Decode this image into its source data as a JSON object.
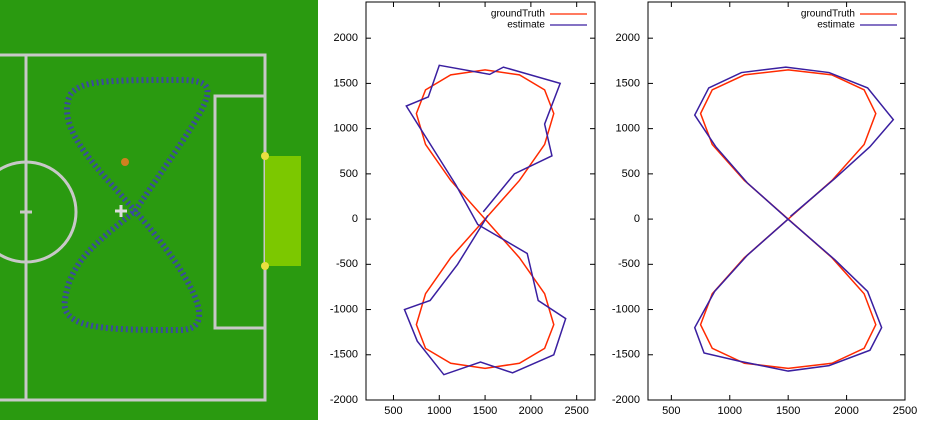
{
  "chart_data": [
    {
      "type": "line",
      "xlim": [
        200,
        2700
      ],
      "ylim": [
        -2000,
        2400
      ],
      "xticks": [
        500,
        1000,
        1500,
        2000,
        2500
      ],
      "yticks": [
        -2000,
        -1500,
        -1000,
        -500,
        0,
        500,
        1000,
        1500,
        2000
      ],
      "legend": "upper right",
      "series": [
        {
          "name": "groundTruth",
          "color": "#ff2a00",
          "x": [
            1500,
            1875,
            2150,
            2250,
            2150,
            1875,
            1500,
            1125,
            850,
            750,
            850,
            1125,
            1500,
            1875,
            2150,
            2250,
            2150,
            1875,
            1500,
            1125,
            850,
            750,
            850,
            1125,
            1500
          ],
          "y": [
            0,
            427,
            825,
            1167,
            1429,
            1594,
            1650,
            1594,
            1429,
            1167,
            825,
            427,
            0,
            -427,
            -825,
            -1167,
            -1429,
            -1594,
            -1650,
            -1594,
            -1429,
            -1167,
            -825,
            -427,
            0
          ]
        },
        {
          "name": "estimate",
          "color": "#3a1fa0",
          "x": [
            1480,
            1820,
            2230,
            2150,
            2320,
            1700,
            1550,
            1000,
            880,
            640,
            950,
            1180,
            1420,
            1960,
            2080,
            2380,
            2250,
            1800,
            1450,
            1050,
            760,
            620,
            900,
            1200,
            1530
          ],
          "y": [
            80,
            500,
            700,
            1050,
            1500,
            1680,
            1600,
            1700,
            1350,
            1250,
            750,
            380,
            -60,
            -380,
            -900,
            -1100,
            -1500,
            -1700,
            -1580,
            -1720,
            -1350,
            -1000,
            -900,
            -500,
            40
          ]
        }
      ]
    },
    {
      "type": "line",
      "xlim": [
        300,
        2500
      ],
      "ylim": [
        -2000,
        2400
      ],
      "xticks": [
        500,
        1000,
        1500,
        2000,
        2500
      ],
      "yticks": [
        -2000,
        -1500,
        -1000,
        -500,
        0,
        500,
        1000,
        1500,
        2000
      ],
      "legend": "upper right",
      "series": [
        {
          "name": "groundTruth",
          "color": "#ff2a00",
          "x": [
            1500,
            1875,
            2150,
            2250,
            2150,
            1875,
            1500,
            1125,
            850,
            750,
            850,
            1125,
            1500,
            1875,
            2150,
            2250,
            2150,
            1875,
            1500,
            1125,
            850,
            750,
            850,
            1125,
            1500
          ],
          "y": [
            0,
            427,
            825,
            1167,
            1429,
            1594,
            1650,
            1594,
            1429,
            1167,
            825,
            427,
            0,
            -427,
            -825,
            -1167,
            -1429,
            -1594,
            -1650,
            -1594,
            -1429,
            -1167,
            -825,
            -427,
            0
          ]
        },
        {
          "name": "estimate",
          "color": "#3a1fa0",
          "x": [
            1520,
            1900,
            2200,
            2400,
            2180,
            1850,
            1480,
            1100,
            820,
            700,
            880,
            1150,
            1480,
            1900,
            2180,
            2300,
            2200,
            1850,
            1500,
            1080,
            780,
            700,
            870,
            1150,
            1500
          ],
          "y": [
            30,
            450,
            800,
            1100,
            1450,
            1620,
            1680,
            1620,
            1450,
            1150,
            800,
            400,
            20,
            -450,
            -800,
            -1200,
            -1450,
            -1620,
            -1680,
            -1570,
            -1480,
            -1200,
            -800,
            -400,
            0
          ]
        }
      ]
    }
  ]
}
